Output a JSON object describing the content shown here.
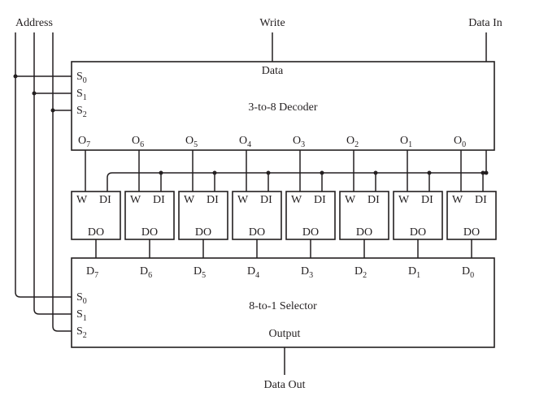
{
  "labels": {
    "address": "Address",
    "write": "Write",
    "data_in": "Data In",
    "data_out": "Data Out"
  },
  "decoder": {
    "title": "3-to-8 Decoder",
    "data_label": "Data",
    "selects": [
      "S",
      "S",
      "S"
    ],
    "select_subs": [
      "0",
      "1",
      "2"
    ],
    "output_prefix": "O",
    "outputs": [
      "7",
      "6",
      "5",
      "4",
      "3",
      "2",
      "1",
      "0"
    ]
  },
  "cells": {
    "w_label": "W",
    "di_label": "DI",
    "do_label": "DO"
  },
  "selector": {
    "title": "8-to-1 Selector",
    "output_label": "Output",
    "input_prefix": "D",
    "inputs": [
      "7",
      "6",
      "5",
      "4",
      "3",
      "2",
      "1",
      "0"
    ],
    "selects": [
      "S",
      "S",
      "S"
    ],
    "select_subs": [
      "0",
      "1",
      "2"
    ]
  },
  "colors": {
    "ink": "#231f20",
    "background": "#ffffff"
  }
}
